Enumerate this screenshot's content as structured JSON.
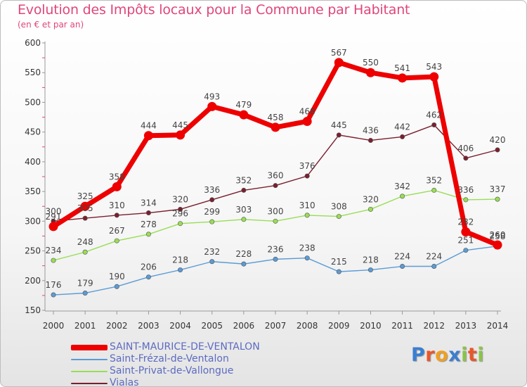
{
  "chart_data": {
    "type": "line",
    "title": "Evolution des Impôts locaux pour la Commune par Habitant",
    "subtitle": "(en € et par an)",
    "x": [
      "2000",
      "2001",
      "2002",
      "2003",
      "2004",
      "2005",
      "2006",
      "2007",
      "2008",
      "2009",
      "2010",
      "2011",
      "2012",
      "2013",
      "2014"
    ],
    "ylim": [
      150,
      600
    ],
    "yticks": [
      150,
      200,
      250,
      300,
      350,
      400,
      450,
      500,
      550,
      600
    ],
    "grid": false,
    "legend_position": "bottom-left",
    "series": [
      {
        "name": "SAINT-MAURICE-DE-VENTALON",
        "color": "#ee0000",
        "values": [
          291,
          325,
          358,
          444,
          445,
          493,
          479,
          458,
          468,
          567,
          550,
          541,
          543,
          282,
          260
        ]
      },
      {
        "name": "Saint-Frézal-de-Ventalon",
        "color": "#5b9bd5",
        "values": [
          176,
          179,
          190,
          206,
          218,
          232,
          228,
          236,
          238,
          215,
          218,
          224,
          224,
          251,
          258
        ]
      },
      {
        "name": "Saint-Privat-de-Vallongue",
        "color": "#99dd55",
        "values": [
          234,
          248,
          267,
          278,
          296,
          299,
          303,
          300,
          310,
          308,
          320,
          342,
          352,
          336,
          337
        ]
      },
      {
        "name": "Vialas",
        "color": "#7a1f2e",
        "values": [
          300,
          305,
          310,
          314,
          320,
          336,
          352,
          360,
          376,
          445,
          436,
          442,
          462,
          406,
          420
        ]
      }
    ]
  },
  "logo": {
    "letters": [
      {
        "char": "P",
        "color": "#3a7fd0"
      },
      {
        "char": "r",
        "color": "#e8562a"
      },
      {
        "char": "o",
        "color": "#f0a020"
      },
      {
        "char": "x",
        "color": "#3a7fd0"
      },
      {
        "char": "i",
        "color": "#8bc34a"
      },
      {
        "char": "t",
        "color": "#e8562a"
      },
      {
        "char": "i",
        "color": "#8bc34a"
      }
    ]
  }
}
